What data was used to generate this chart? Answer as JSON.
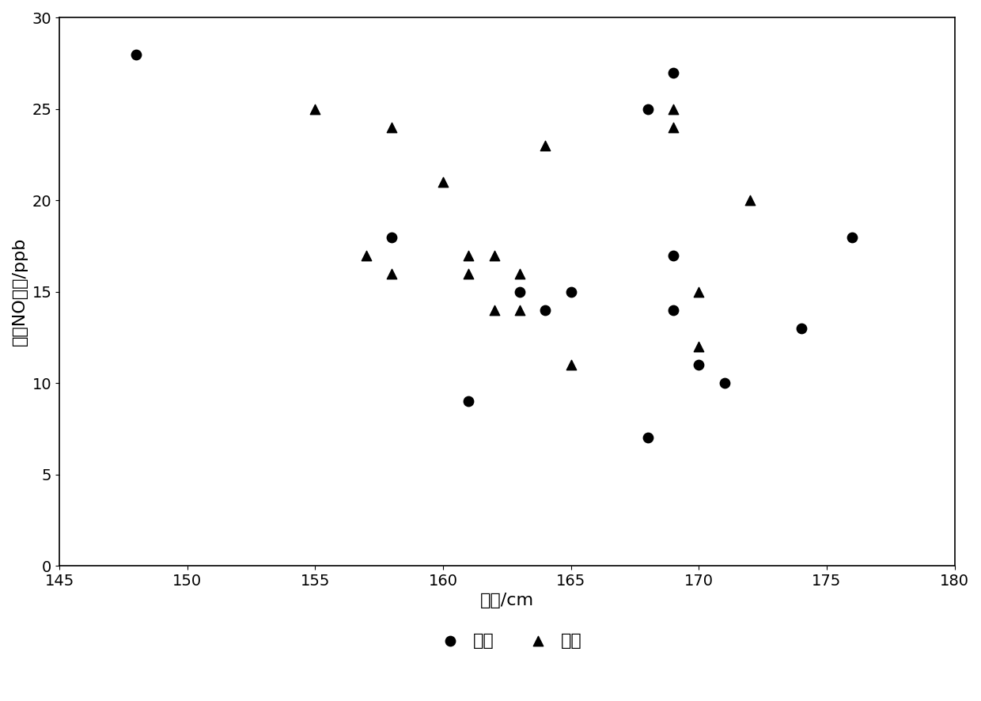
{
  "sick_x": [
    148,
    158,
    161,
    168,
    169,
    169,
    170,
    174,
    176,
    163,
    164,
    165,
    168,
    169,
    171
  ],
  "sick_y": [
    28,
    18,
    9,
    25,
    27,
    14,
    11,
    13,
    18,
    15,
    14,
    15,
    7,
    17,
    10
  ],
  "healthy_x": [
    155,
    157,
    158,
    158,
    160,
    161,
    161,
    162,
    162,
    163,
    163,
    164,
    165,
    169,
    169,
    170,
    170,
    172
  ],
  "healthy_y": [
    25,
    17,
    16,
    24,
    21,
    17,
    16,
    17,
    14,
    16,
    14,
    23,
    11,
    25,
    24,
    15,
    12,
    20
  ],
  "xlim": [
    145,
    180
  ],
  "ylim": [
    0,
    30
  ],
  "xticks": [
    145,
    150,
    155,
    160,
    165,
    170,
    175,
    180
  ],
  "yticks": [
    0,
    5,
    10,
    15,
    20,
    25,
    30
  ],
  "xlabel": "身高/cm",
  "ylabel": "呼气NO浓度/ppb",
  "legend_sick": "患病",
  "legend_healthy": "健康",
  "marker_size": 80,
  "color": "#000000",
  "figsize": [
    12.4,
    8.86
  ],
  "dpi": 100
}
